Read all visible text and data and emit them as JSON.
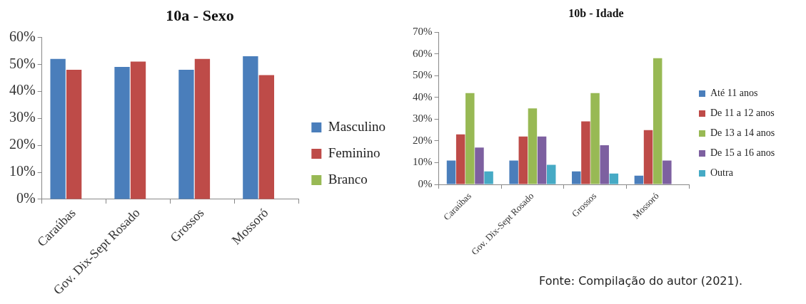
{
  "chart_data": [
    {
      "type": "bar",
      "title": "10a - Sexo",
      "categories": [
        "Caraúbas",
        "Gov. Dix-Sept Rosado",
        "Grossos",
        "Mossoró"
      ],
      "series": [
        {
          "name": "Masculino",
          "color": "#4a7ebb",
          "values": [
            52,
            49,
            48,
            53
          ]
        },
        {
          "name": "Feminino",
          "color": "#be4b48",
          "values": [
            48,
            51,
            52,
            46
          ]
        },
        {
          "name": "Branco",
          "color": "#98b954",
          "values": [
            null,
            null,
            null,
            null
          ]
        }
      ],
      "ylim": [
        0,
        60
      ],
      "yticks": [
        {
          "value": 0,
          "label": "0%"
        },
        {
          "value": 10,
          "label": "10%"
        },
        {
          "value": 20,
          "label": "20%"
        },
        {
          "value": 30,
          "label": "30%"
        },
        {
          "value": 40,
          "label": "40%"
        },
        {
          "value": 50,
          "label": "50%"
        },
        {
          "value": 60,
          "label": "60%"
        }
      ],
      "grid": false,
      "legend": "right"
    },
    {
      "type": "bar",
      "title": "10b - Idade",
      "categories": [
        "Caraúbas",
        "Gov. Dix-Sept Rosado",
        "Grossos",
        "Mossoró"
      ],
      "series": [
        {
          "name": "Até 11 anos",
          "color": "#4a7ebb",
          "values": [
            11,
            11,
            6,
            4
          ]
        },
        {
          "name": "De 11 a 12 anos",
          "color": "#be4b48",
          "values": [
            23,
            22,
            29,
            25
          ]
        },
        {
          "name": "De 13 a 14 anos",
          "color": "#98b954",
          "values": [
            42,
            35,
            42,
            58
          ]
        },
        {
          "name": "De 15 a 16 anos",
          "color": "#7d60a0",
          "values": [
            17,
            22,
            18,
            11
          ]
        },
        {
          "name": "Outra",
          "color": "#46aac5",
          "values": [
            6,
            9,
            5,
            0
          ]
        }
      ],
      "ylim": [
        0,
        70
      ],
      "yticks": [
        {
          "value": 0,
          "label": "0%"
        },
        {
          "value": 10,
          "label": "10%"
        },
        {
          "value": 20,
          "label": "20%"
        },
        {
          "value": 30,
          "label": "30%"
        },
        {
          "value": 40,
          "label": "40%"
        },
        {
          "value": 50,
          "label": "50%"
        },
        {
          "value": 60,
          "label": "60%"
        },
        {
          "value": 70,
          "label": "70%"
        }
      ],
      "grid": false,
      "legend": "right",
      "annotations": [
        "Fonte: Compilação do autor (2021)."
      ]
    }
  ]
}
